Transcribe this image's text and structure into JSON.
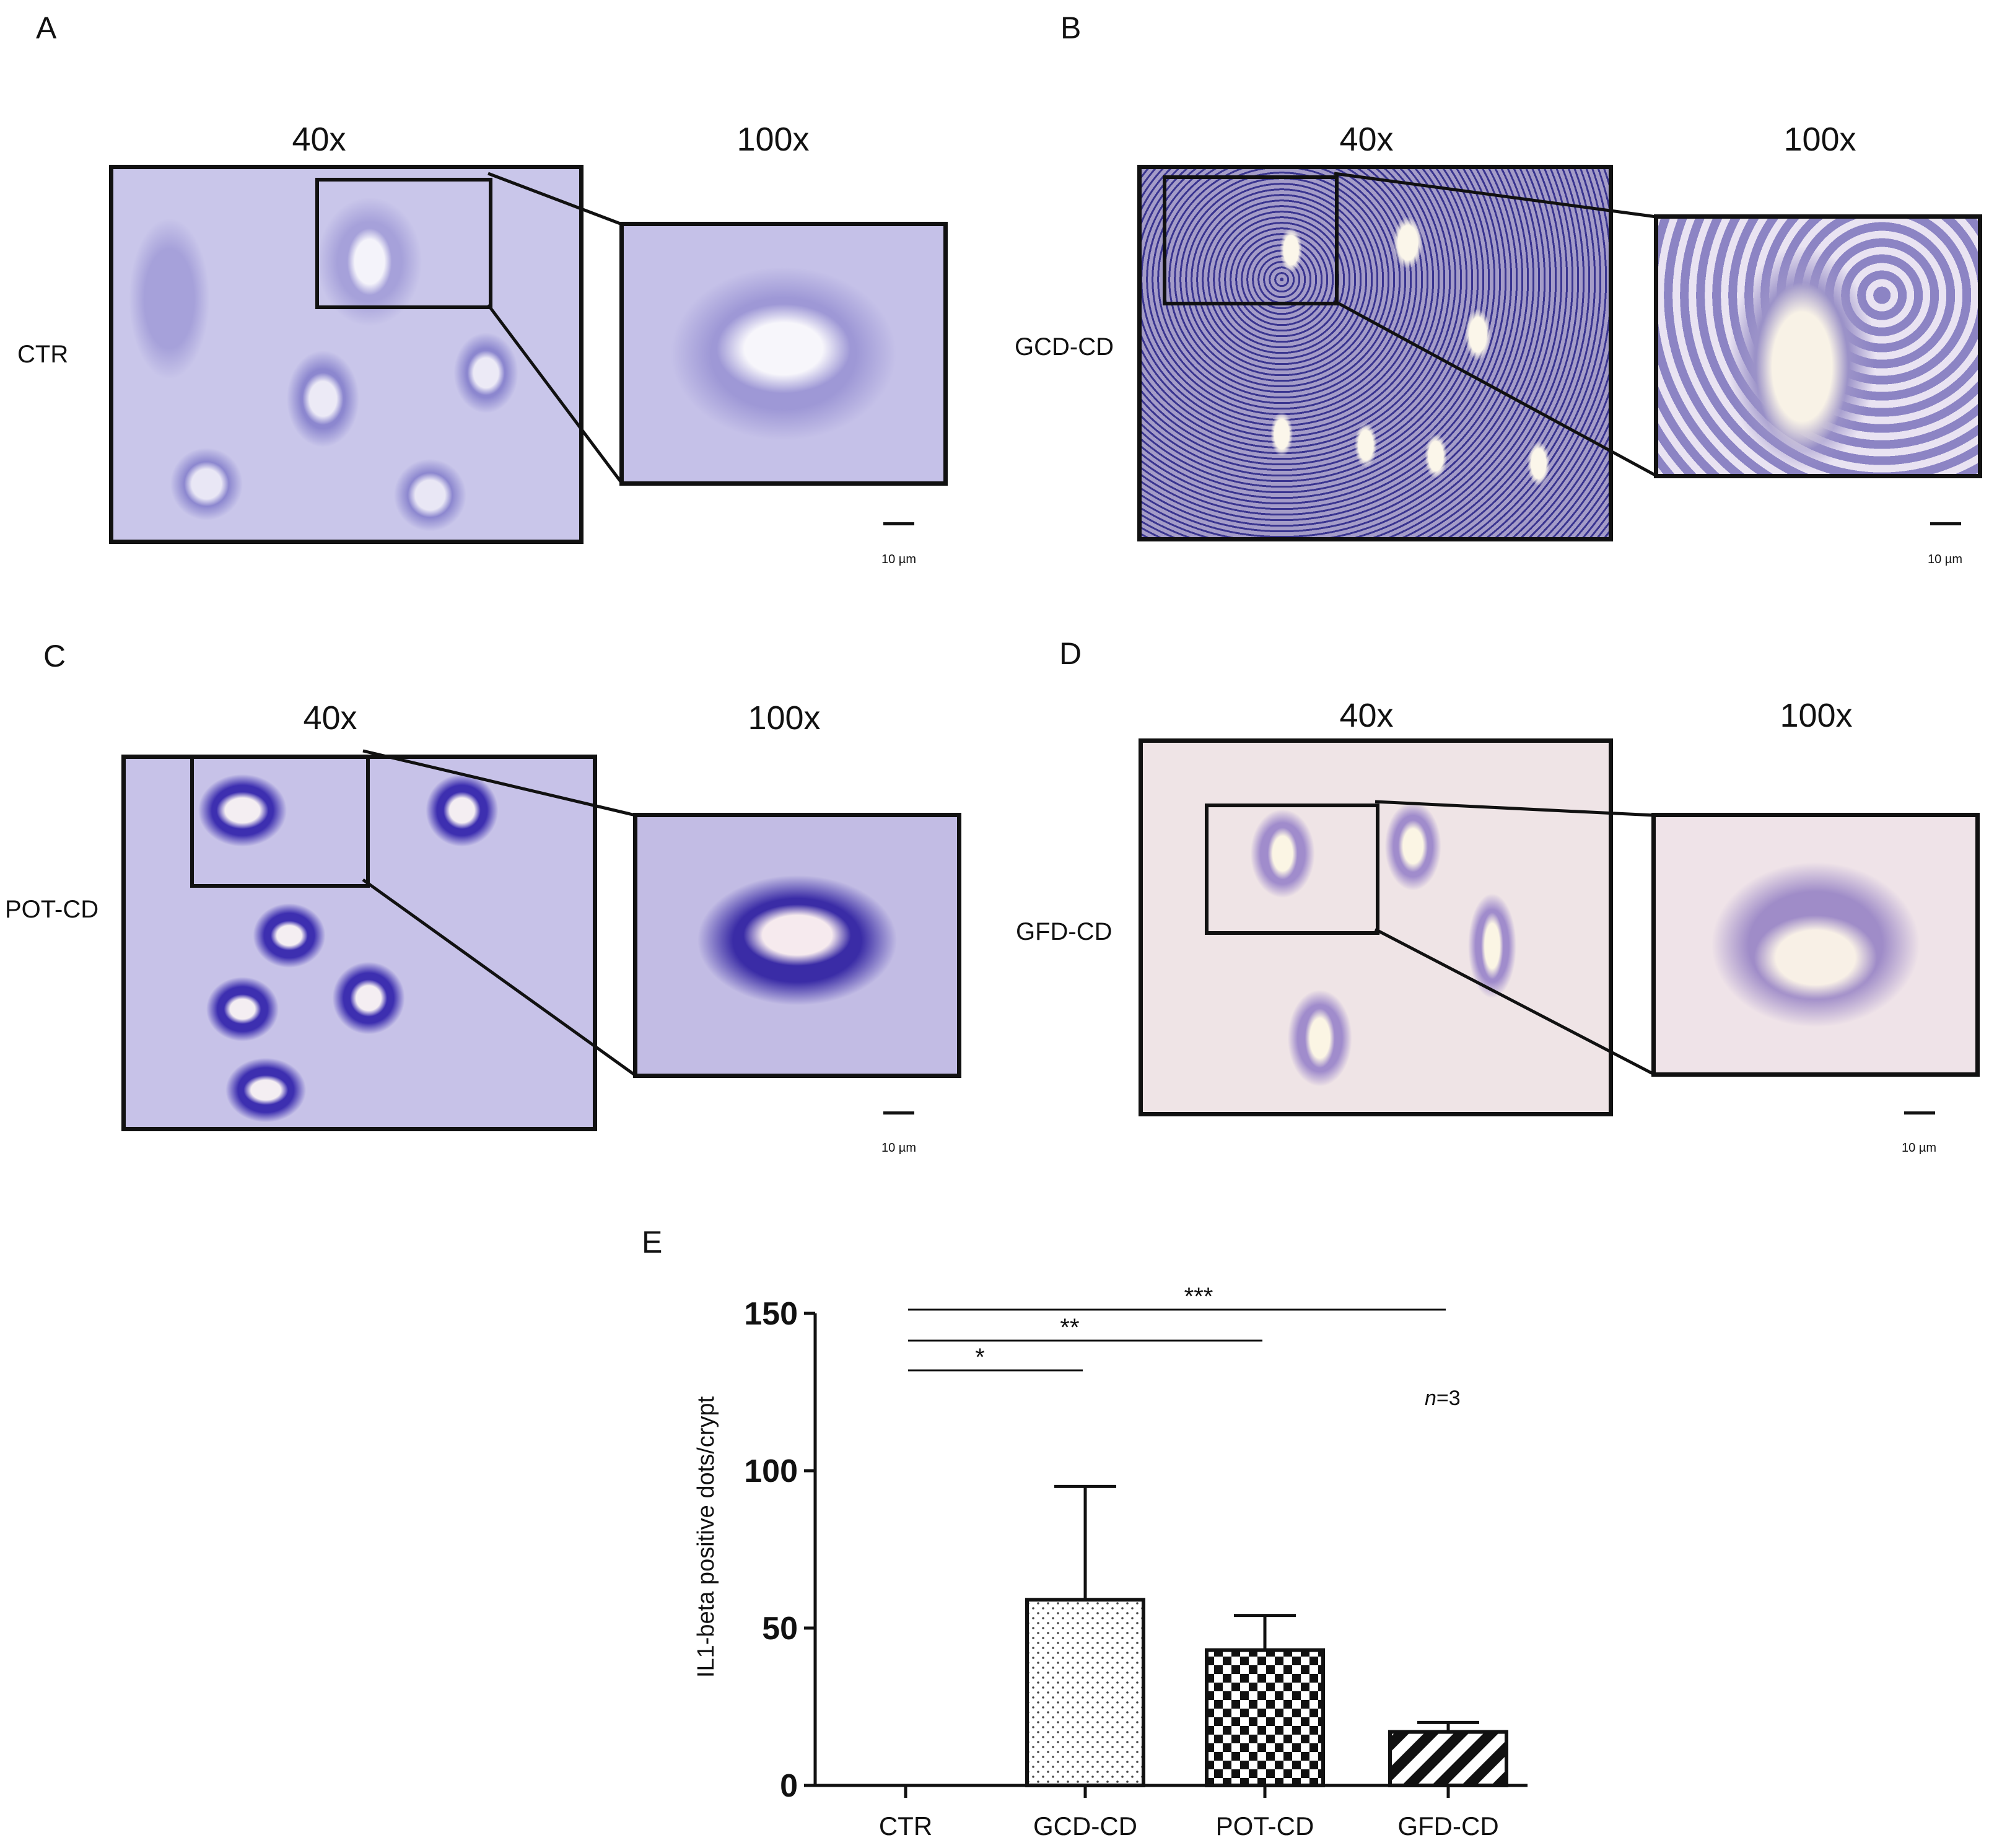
{
  "panels": [
    {
      "letter": "A",
      "group": "CTR",
      "low_mag": "40x",
      "high_mag": "100x",
      "scale": "10 µm"
    },
    {
      "letter": "B",
      "group": "GCD-CD",
      "low_mag": "40x",
      "high_mag": "100x",
      "scale": "10 µm"
    },
    {
      "letter": "C",
      "group": "POT-CD",
      "low_mag": "40x",
      "high_mag": "100x",
      "scale": "10 µm"
    },
    {
      "letter": "D",
      "group": "GFD-CD",
      "low_mag": "40x",
      "high_mag": "100x",
      "scale": "10 µm"
    }
  ],
  "chart_panel_letter": "E",
  "chart_data": {
    "type": "bar",
    "categories": [
      "CTR",
      "GCD-CD",
      "POT-CD",
      "GFD-CD"
    ],
    "values": [
      0,
      59,
      43,
      17
    ],
    "error_upper": [
      0,
      95,
      54,
      20
    ],
    "ylabel": "IL1-beta positive dots/crypt",
    "ylim": [
      0,
      150
    ],
    "yticks": [
      0,
      50,
      100,
      150
    ],
    "annotation": "n=3",
    "significance": [
      {
        "from": "CTR",
        "to": "GCD-CD",
        "label": "*"
      },
      {
        "from": "CTR",
        "to": "POT-CD",
        "label": "**"
      },
      {
        "from": "CTR",
        "to": "GFD-CD",
        "label": "***"
      }
    ],
    "bar_fills": [
      "none",
      "dots",
      "checker",
      "diagonal"
    ]
  }
}
